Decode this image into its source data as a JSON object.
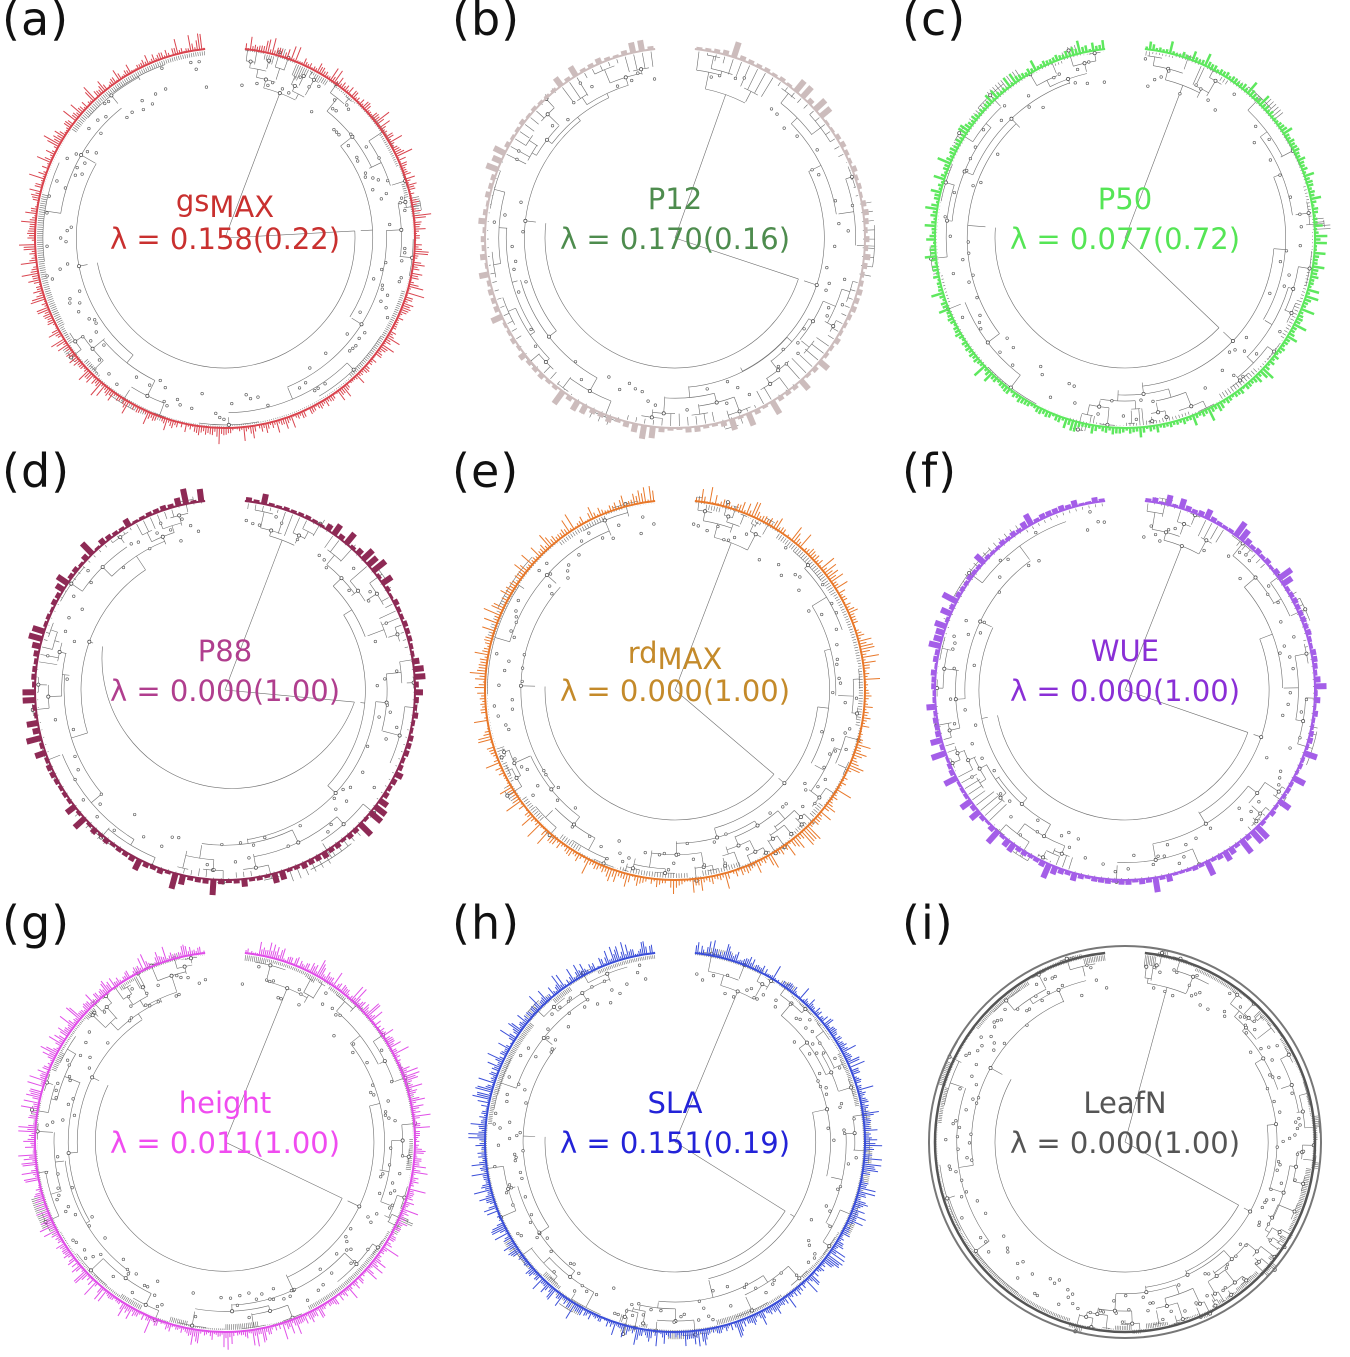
{
  "panels": [
    {
      "id": "a",
      "label": "(a)",
      "trait_main": "gs",
      "trait_sub": "MAX",
      "trait": "",
      "lambda": "λ = 0.158(0.22)",
      "color": "#d9444e",
      "text_color": "#c9302f",
      "bar_style": "thin",
      "tips": 520
    },
    {
      "id": "b",
      "label": "(b)",
      "trait_main": "",
      "trait_sub": "",
      "trait": "P12",
      "lambda": "λ = 0.170(0.16)",
      "color": "#ccbcbc",
      "text_color": "#4e8c4e",
      "bar_style": "wide",
      "tips": 130
    },
    {
      "id": "c",
      "label": "(c)",
      "trait_main": "",
      "trait_sub": "",
      "trait": "P50",
      "lambda": "λ = 0.077(0.72)",
      "color": "#5ee85e",
      "text_color": "#55e555",
      "bar_style": "medium",
      "tips": 340
    },
    {
      "id": "d",
      "label": "(d)",
      "trait_main": "",
      "trait_sub": "",
      "trait": "P88",
      "lambda": "λ = 0.000(1.00)",
      "color": "#8e2a55",
      "text_color": "#b03e8e",
      "bar_style": "wide",
      "tips": 150
    },
    {
      "id": "e",
      "label": "(e)",
      "trait_main": "rd",
      "trait_sub": "MAX",
      "trait": "",
      "lambda": "λ = 0.000(1.00)",
      "color": "#e8782a",
      "text_color": "#c48a2a",
      "bar_style": "thin",
      "tips": 420
    },
    {
      "id": "f",
      "label": "(f)",
      "trait_main": "",
      "trait_sub": "",
      "trait": "WUE",
      "lambda": "λ = 0.000(1.00)",
      "color": "#a45ee8",
      "text_color": "#8a2fd6",
      "bar_style": "wide",
      "tips": 170
    },
    {
      "id": "g",
      "label": "(g)",
      "trait_main": "",
      "trait_sub": "",
      "trait": "height",
      "lambda": "λ = 0.011(1.00)",
      "color": "#e04ee8",
      "text_color": "#f04cf0",
      "bar_style": "thin",
      "tips": 600
    },
    {
      "id": "h",
      "label": "(h)",
      "trait_main": "",
      "trait_sub": "",
      "trait": "SLA",
      "lambda": "λ = 0.151(0.19)",
      "color": "#3a4ed8",
      "text_color": "#2323d8",
      "bar_style": "thin",
      "tips": 620
    },
    {
      "id": "i",
      "label": "(i)",
      "trait_main": "",
      "trait_sub": "",
      "trait": "LeafN",
      "lambda": "λ = 0.000(1.00)",
      "color": "#777777",
      "text_color": "#555555",
      "bar_style": "ring",
      "tips": 650
    }
  ]
}
